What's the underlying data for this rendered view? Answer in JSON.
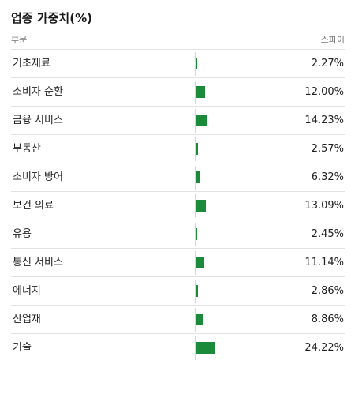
{
  "title": "업종 가중치(%)",
  "header": {
    "sector_label": "부문",
    "value_label": "스파이"
  },
  "colors": {
    "bar": "#1b8a3a",
    "rule": "#e2e2e2"
  },
  "sectors": [
    {
      "label": "기초재료",
      "value": "2.27%",
      "weight": 2.27
    },
    {
      "label": "소비자 순환",
      "value": "12.00%",
      "weight": 12.0
    },
    {
      "label": "금융 서비스",
      "value": "14.23%",
      "weight": 14.23
    },
    {
      "label": "부동산",
      "value": "2.57%",
      "weight": 2.57
    },
    {
      "label": "소비자 방어",
      "value": "6.32%",
      "weight": 6.32
    },
    {
      "label": "보건 의료",
      "value": "13.09%",
      "weight": 13.09
    },
    {
      "label": "유용",
      "value": "2.45%",
      "weight": 2.45
    },
    {
      "label": "통신 서비스",
      "value": "11.14%",
      "weight": 11.14
    },
    {
      "label": "에너지",
      "value": "2.86%",
      "weight": 2.86
    },
    {
      "label": "산업재",
      "value": "8.86%",
      "weight": 8.86
    },
    {
      "label": "기술",
      "value": "24.22%",
      "weight": 24.22
    }
  ]
}
